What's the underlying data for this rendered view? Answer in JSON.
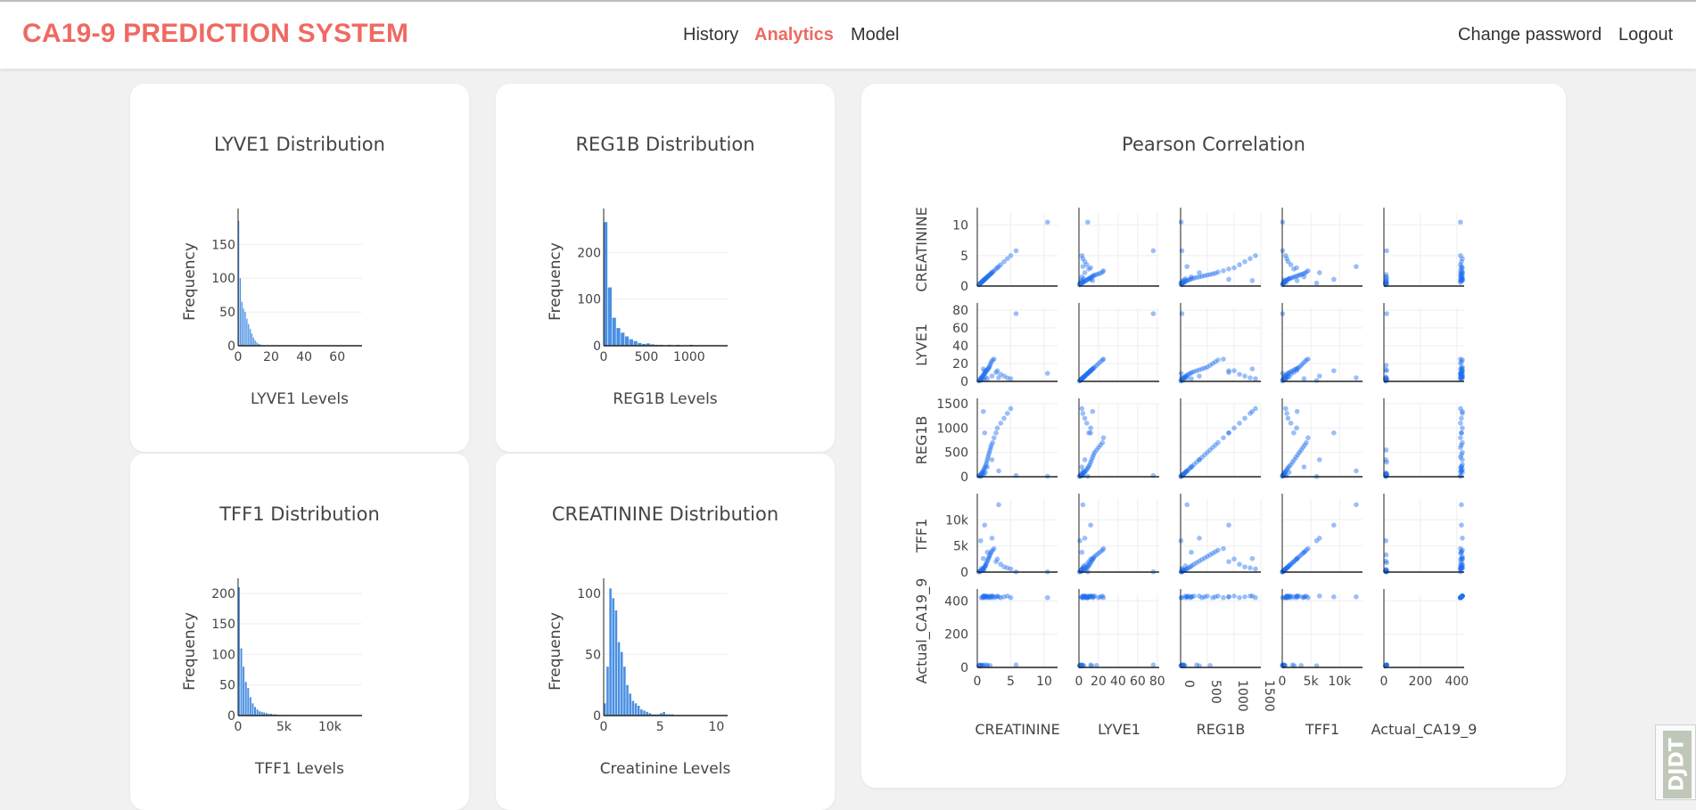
{
  "app": {
    "brand": "CA19-9 PREDICTION SYSTEM",
    "nav": [
      "History",
      "Analytics",
      "Model"
    ],
    "active_nav": "Analytics",
    "right_nav": [
      "Change password",
      "Logout"
    ],
    "accent_color": "#ee6a62",
    "watermark": "DJDT"
  },
  "chart_data": [
    {
      "type": "bar",
      "title": "LYVE1 Distribution",
      "xlabel": "LYVE1 Levels",
      "ylabel": "Frequency",
      "xlim": [
        0,
        75
      ],
      "ylim": [
        0,
        190
      ],
      "xticks": [
        0,
        20,
        40,
        60
      ],
      "xtick_labels": [
        "0",
        "20",
        "40",
        "60"
      ],
      "yticks": [
        0,
        50,
        100,
        150
      ],
      "ytick_labels": [
        "0",
        "50",
        "100",
        "150"
      ],
      "bin_width": 1,
      "values": [
        185,
        100,
        65,
        55,
        50,
        40,
        32,
        25,
        18,
        12,
        8,
        5,
        3,
        2,
        1
      ],
      "color": "#4a90e2"
    },
    {
      "type": "bar",
      "title": "REG1B Distribution",
      "xlabel": "REG1B Levels",
      "ylabel": "Frequency",
      "xlim": [
        0,
        1450
      ],
      "ylim": [
        0,
        275
      ],
      "xticks": [
        0,
        500,
        1000
      ],
      "xtick_labels": [
        "0",
        "500",
        "1000"
      ],
      "yticks": [
        0,
        100,
        200
      ],
      "ytick_labels": [
        "0",
        "100",
        "200"
      ],
      "bin_width": 50,
      "values": [
        265,
        125,
        60,
        38,
        28,
        20,
        14,
        10,
        6,
        4,
        5,
        3,
        2,
        2,
        1,
        2,
        1,
        2,
        1,
        1,
        2,
        1,
        1,
        0,
        1,
        0,
        1
      ],
      "color": "#4a90e2"
    },
    {
      "type": "bar",
      "title": "TFF1 Distribution",
      "xlabel": "TFF1 Levels",
      "ylabel": "Frequency",
      "xlim": [
        0,
        13500
      ],
      "ylim": [
        0,
        210
      ],
      "xticks": [
        0,
        5000,
        10000
      ],
      "xtick_labels": [
        "0",
        "5k",
        "10k"
      ],
      "yticks": [
        0,
        50,
        100,
        150,
        200
      ],
      "ytick_labels": [
        "0",
        "50",
        "100",
        "150",
        "200"
      ],
      "bin_width": 250,
      "values": [
        210,
        110,
        80,
        55,
        45,
        30,
        20,
        14,
        10,
        7,
        6,
        5,
        4,
        3,
        3,
        2,
        2,
        1,
        1,
        1,
        1,
        0,
        1,
        0,
        1
      ],
      "color": "#4a90e2"
    },
    {
      "type": "bar",
      "title": "CREATININE Distribution",
      "xlabel": "Creatinine Levels",
      "ylabel": "Frequency",
      "xlim": [
        0,
        11
      ],
      "ylim": [
        0,
        105
      ],
      "xticks": [
        0,
        5,
        10
      ],
      "xtick_labels": [
        "0",
        "5",
        "10"
      ],
      "yticks": [
        0,
        50,
        100
      ],
      "ytick_labels": [
        "0",
        "50",
        "100"
      ],
      "bin_width": 0.25,
      "values": [
        10,
        40,
        104,
        96,
        86,
        60,
        52,
        40,
        25,
        18,
        12,
        10,
        8,
        5,
        4,
        3,
        2,
        1,
        1,
        1,
        2,
        3,
        1,
        1,
        1
      ],
      "color": "#4a90e2"
    },
    {
      "type": "scatter",
      "title": "Pearson Correlation",
      "variables": [
        "CREATININE",
        "LYVE1",
        "REG1B",
        "TFF1",
        "Actual_CA19_9"
      ],
      "axis_ticks": {
        "CREATININE": {
          "values": [
            0,
            5,
            10
          ],
          "labels": [
            "0",
            "5",
            "10"
          ],
          "range": [
            0,
            12
          ]
        },
        "LYVE1": {
          "values": [
            0,
            20,
            40,
            60,
            80
          ],
          "labels": [
            "0",
            "20",
            "40",
            "60",
            "80"
          ],
          "range": [
            0,
            82
          ]
        },
        "REG1B": {
          "values": [
            0,
            500,
            1000,
            1500
          ],
          "labels": [
            "0",
            "500",
            "1000",
            "1500"
          ],
          "range": [
            0,
            1500
          ]
        },
        "TFF1": {
          "values": [
            0,
            5000,
            10000
          ],
          "labels": [
            "0",
            "5k",
            "10k"
          ],
          "range": [
            0,
            14000
          ]
        },
        "Actual_CA19_9": {
          "values": [
            0,
            200,
            400
          ],
          "labels": [
            "0",
            "200",
            "400"
          ],
          "range": [
            0,
            440
          ]
        }
      },
      "point_color": "#1f6ff0",
      "samples": [
        [
          0.2,
          0.5,
          10,
          50,
          10
        ],
        [
          0.3,
          1,
          20,
          80,
          12
        ],
        [
          0.4,
          2,
          30,
          120,
          15
        ],
        [
          0.5,
          3,
          45,
          200,
          8
        ],
        [
          0.6,
          4,
          60,
          300,
          14
        ],
        [
          0.7,
          5,
          80,
          400,
          10
        ],
        [
          0.8,
          6,
          100,
          500,
          420
        ],
        [
          0.9,
          7,
          120,
          650,
          425
        ],
        [
          1.0,
          8,
          150,
          800,
          430
        ],
        [
          1.1,
          9,
          180,
          1000,
          420
        ],
        [
          1.2,
          10,
          210,
          1200,
          425
        ],
        [
          1.3,
          11,
          250,
          1500,
          430
        ],
        [
          1.4,
          12,
          300,
          1800,
          15
        ],
        [
          1.5,
          13,
          350,
          2100,
          10
        ],
        [
          1.6,
          14,
          400,
          2400,
          420
        ],
        [
          1.7,
          15,
          450,
          2700,
          425
        ],
        [
          1.8,
          16,
          500,
          3000,
          430
        ],
        [
          1.9,
          18,
          550,
          3300,
          12
        ],
        [
          2.0,
          20,
          600,
          3600,
          420
        ],
        [
          2.1,
          22,
          650,
          3900,
          425
        ],
        [
          2.3,
          24,
          700,
          4200,
          430
        ],
        [
          2.5,
          25,
          800,
          4500,
          420
        ],
        [
          2.8,
          10,
          900,
          2000,
          425
        ],
        [
          3.0,
          12,
          1000,
          2500,
          430
        ],
        [
          3.5,
          8,
          1100,
          1500,
          420
        ],
        [
          4.0,
          6,
          1200,
          1000,
          425
        ],
        [
          4.5,
          4,
          1300,
          800,
          430
        ],
        [
          5.0,
          3,
          1400,
          600,
          420
        ],
        [
          1.0,
          2,
          60,
          300,
          15
        ],
        [
          0.8,
          3,
          40,
          500,
          12
        ],
        [
          1.2,
          5,
          90,
          1200,
          430
        ],
        [
          0.6,
          4,
          20,
          700,
          420
        ],
        [
          1.5,
          3,
          200,
          3800,
          425
        ],
        [
          2.2,
          6,
          350,
          6500,
          430
        ],
        [
          3.2,
          4,
          120,
          12900,
          425
        ],
        [
          10.5,
          9,
          10,
          50,
          420
        ],
        [
          5.8,
          76,
          25,
          60,
          15
        ],
        [
          0.9,
          14,
          1340,
          2600,
          430
        ],
        [
          1.1,
          12,
          900,
          9000,
          425
        ],
        [
          0.5,
          1,
          5,
          6000,
          10
        ]
      ]
    }
  ]
}
